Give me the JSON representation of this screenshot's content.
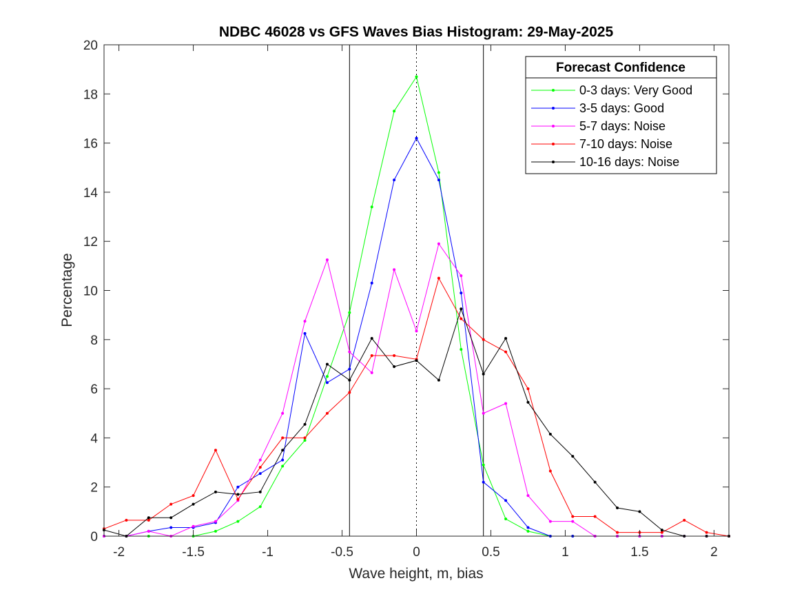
{
  "chart_data": {
    "type": "line",
    "title": "NDBC 46028 vs GFS Waves Bias Histogram: 29-May-2025",
    "xlabel": "Wave height, m, bias",
    "ylabel": "Percentage",
    "xlim": [
      -2.1,
      2.1
    ],
    "ylim": [
      0,
      20
    ],
    "xticks": [
      -2,
      -1.5,
      -1,
      -0.5,
      0,
      0.5,
      1,
      1.5,
      2
    ],
    "xtick_labels": [
      "-2",
      "-1.5",
      "-1",
      "-0.5",
      "0",
      "0.5",
      "1",
      "1.5",
      "2"
    ],
    "yticks": [
      0,
      2,
      4,
      6,
      8,
      10,
      12,
      14,
      16,
      18,
      20
    ],
    "ytick_labels": [
      "0",
      "2",
      "4",
      "6",
      "8",
      "10",
      "12",
      "14",
      "16",
      "18",
      "20"
    ],
    "vertical_lines": [
      {
        "x": -0.45,
        "style": "solid"
      },
      {
        "x": 0,
        "style": "dotted"
      },
      {
        "x": 0.45,
        "style": "solid"
      }
    ],
    "legend": {
      "title": "Forecast Confidence",
      "position": "top-right"
    },
    "x": [
      -2.1,
      -1.95,
      -1.8,
      -1.65,
      -1.5,
      -1.35,
      -1.2,
      -1.05,
      -0.9,
      -0.75,
      -0.6,
      -0.45,
      -0.3,
      -0.15,
      0,
      0.15,
      0.3,
      0.45,
      0.6,
      0.75,
      0.9,
      1.05,
      1.2,
      1.35,
      1.5,
      1.65,
      1.8,
      1.95,
      2.1
    ],
    "series": [
      {
        "name": "0-3 days: Very Good",
        "color": "#00ff00",
        "values": [
          0,
          0,
          0,
          0,
          0,
          0.2,
          0.6,
          1.2,
          2.85,
          3.9,
          6.5,
          9.1,
          13.4,
          17.3,
          18.7,
          14.8,
          7.6,
          2.9,
          0.7,
          0.2,
          0,
          0,
          0,
          0,
          0,
          0,
          0,
          0,
          0
        ]
      },
      {
        "name": "3-5 days: Good",
        "color": "#0000ff",
        "values": [
          0,
          0,
          0.2,
          0.35,
          0.35,
          0.55,
          2.0,
          2.55,
          3.1,
          8.25,
          6.25,
          6.8,
          10.3,
          14.5,
          16.2,
          14.5,
          9.9,
          2.2,
          1.45,
          0.35,
          0,
          0,
          0,
          0,
          0,
          0,
          0,
          0,
          0
        ]
      },
      {
        "name": "5-7 days: Noise",
        "color": "#ff00ff",
        "values": [
          0,
          0,
          0.2,
          0,
          0.4,
          0.6,
          1.45,
          3.1,
          5.0,
          8.75,
          11.25,
          7.5,
          6.65,
          10.85,
          8.35,
          11.9,
          10.6,
          5.0,
          5.4,
          1.65,
          0.6,
          0.6,
          0,
          0,
          0,
          0,
          0,
          0,
          0
        ]
      },
      {
        "name": "7-10 days: Noise",
        "color": "#ff0000",
        "values": [
          0.3,
          0.65,
          0.65,
          1.3,
          1.65,
          3.5,
          1.5,
          2.8,
          4.0,
          4.0,
          5.0,
          5.85,
          7.35,
          7.35,
          7.2,
          10.5,
          8.85,
          8.0,
          7.5,
          6.0,
          2.65,
          0.8,
          0.8,
          0.15,
          0.15,
          0.15,
          0.65,
          0.15,
          0
        ]
      },
      {
        "name": "10-16 days: Noise",
        "color": "#000000",
        "values": [
          0.25,
          0,
          0.75,
          0.75,
          1.3,
          1.8,
          1.7,
          1.8,
          3.5,
          4.55,
          7.0,
          6.35,
          8.05,
          6.9,
          7.15,
          6.35,
          9.25,
          6.6,
          8.05,
          5.45,
          4.15,
          3.25,
          2.2,
          1.15,
          1.0,
          0.25,
          0,
          0,
          0
        ]
      }
    ]
  }
}
